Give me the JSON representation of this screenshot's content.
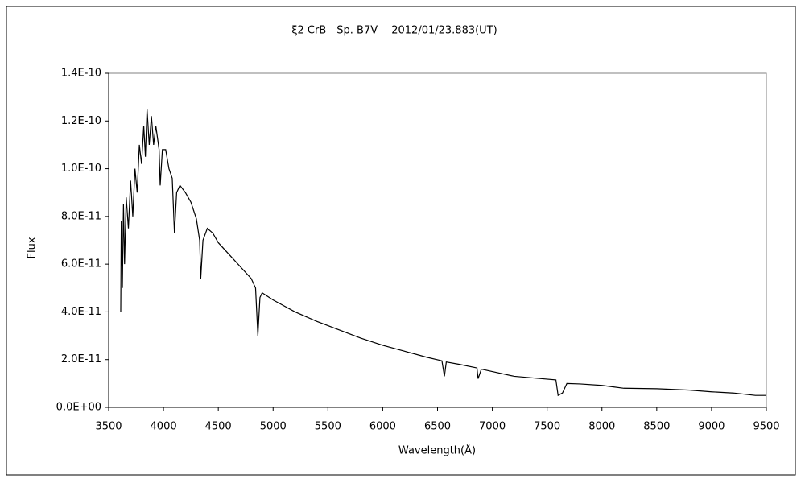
{
  "chart_data": {
    "type": "line",
    "title": "ξ2 CrB　Sp. B7V　 2012/01/23.883(UT)",
    "x_label": "Wavelength(Å)",
    "y_label": "Flux",
    "x": [
      3610,
      3615,
      3625,
      3635,
      3645,
      3660,
      3680,
      3700,
      3720,
      3740,
      3760,
      3780,
      3800,
      3820,
      3835,
      3850,
      3870,
      3890,
      3910,
      3930,
      3960,
      3970,
      3990,
      4020,
      4050,
      4080,
      4100,
      4120,
      4150,
      4200,
      4250,
      4300,
      4330,
      4340,
      4360,
      4400,
      4450,
      4500,
      4600,
      4700,
      4800,
      4840,
      4861,
      4880,
      4900,
      5000,
      5100,
      5200,
      5400,
      5600,
      5800,
      6000,
      6200,
      6400,
      6540,
      6563,
      6580,
      6700,
      6860,
      6870,
      6900,
      7000,
      7200,
      7400,
      7580,
      7600,
      7640,
      7680,
      7800,
      8000,
      8200,
      8500,
      8800,
      9000,
      9200,
      9400,
      9500
    ],
    "series": [
      {
        "name": "Flux",
        "color": "#000000",
        "values": [
          4e-11,
          7.8e-11,
          5e-11,
          8.5e-11,
          6e-11,
          8.8e-11,
          7.5e-11,
          9.5e-11,
          8e-11,
          1e-10,
          9e-11,
          1.1e-10,
          1.02e-10,
          1.18e-10,
          1.05e-10,
          1.25e-10,
          1.1e-10,
          1.22e-10,
          1.1e-10,
          1.18e-10,
          1.08e-10,
          9.3e-11,
          1.08e-10,
          1.08e-10,
          1e-10,
          9.6e-11,
          7.3e-11,
          9e-11,
          9.3e-11,
          9e-11,
          8.6e-11,
          7.9e-11,
          7e-11,
          5.4e-11,
          7e-11,
          7.5e-11,
          7.3e-11,
          6.9e-11,
          6.4e-11,
          5.9e-11,
          5.4e-11,
          5e-11,
          3e-11,
          4.6e-11,
          4.8e-11,
          4.5e-11,
          4.25e-11,
          4e-11,
          3.6e-11,
          3.25e-11,
          2.9e-11,
          2.6e-11,
          2.35e-11,
          2.1e-11,
          1.95e-11,
          1.3e-11,
          1.9e-11,
          1.8e-11,
          1.65e-11,
          1.2e-11,
          1.6e-11,
          1.5e-11,
          1.3e-11,
          1.22e-11,
          1.15e-11,
          5e-12,
          6e-12,
          1e-11,
          9.8e-12,
          9.2e-12,
          8e-12,
          7.8e-12,
          7.2e-12,
          6.5e-12,
          6e-12,
          5e-12,
          5e-12
        ]
      }
    ],
    "xlim": [
      3500,
      9500
    ],
    "xticks": [
      3500,
      4000,
      4500,
      5000,
      5500,
      6000,
      6500,
      7000,
      7500,
      8000,
      8500,
      9000,
      9500
    ],
    "ylim": [
      0,
      1.4e-10
    ],
    "yticks": [
      {
        "value": 0,
        "label": "0.0E+00"
      },
      {
        "value": 2e-11,
        "label": "2.0E-11"
      },
      {
        "value": 4e-11,
        "label": "4.0E-11"
      },
      {
        "value": 6e-11,
        "label": "6.0E-11"
      },
      {
        "value": 8e-11,
        "label": "8.0E-11"
      },
      {
        "value": 1e-10,
        "label": "1.0E-10"
      },
      {
        "value": 1.2e-10,
        "label": "1.2E-10"
      },
      {
        "value": 1.4e-10,
        "label": "1.4E-10"
      }
    ]
  }
}
